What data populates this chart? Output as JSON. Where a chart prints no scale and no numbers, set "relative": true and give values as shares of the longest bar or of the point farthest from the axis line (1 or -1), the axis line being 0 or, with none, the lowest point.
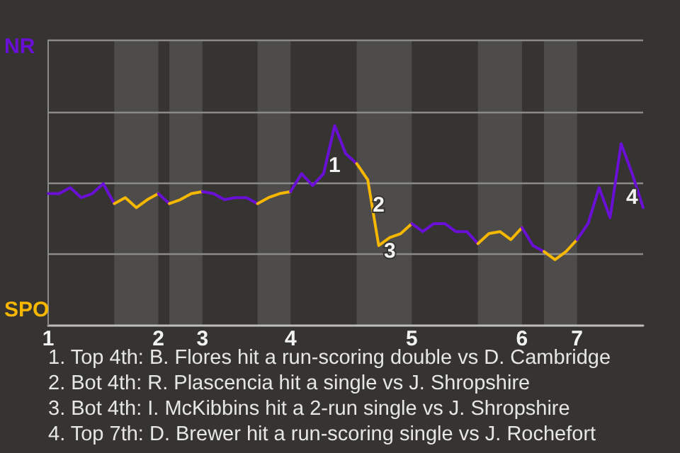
{
  "chart_data": {
    "type": "line",
    "relative": true,
    "categories": [
      "1",
      null,
      null,
      null,
      null,
      null,
      null,
      null,
      null,
      null,
      "2",
      null,
      null,
      null,
      "3",
      null,
      null,
      null,
      null,
      null,
      null,
      null,
      "4",
      null,
      null,
      null,
      null,
      null,
      null,
      null,
      null,
      null,
      null,
      "5",
      null,
      null,
      null,
      null,
      null,
      null,
      null,
      null,
      null,
      "6",
      null,
      null,
      null,
      null,
      "7",
      null,
      null,
      null,
      null,
      null,
      null
    ],
    "marker": "none",
    "line_style": "solid",
    "series": [
      {
        "color": "#6a0fd6",
        "values": [
          0.66,
          0.66,
          0.69,
          0.64,
          0.66,
          0.71,
          0.61,
          null,
          null,
          null,
          null,
          null,
          null,
          null,
          null,
          null,
          null,
          null,
          null,
          null,
          null,
          null,
          null,
          null,
          null,
          null,
          null,
          null,
          null,
          null,
          null,
          null,
          null,
          null,
          null,
          null,
          null,
          null,
          null,
          null,
          null,
          null,
          null,
          null,
          null,
          null,
          null,
          null,
          null,
          null,
          null,
          null,
          null,
          null,
          null
        ]
      },
      {
        "color": "#f5b700",
        "values": [
          null,
          null,
          null,
          null,
          null,
          null,
          0.61,
          0.64,
          0.59,
          0.63,
          0.66,
          null,
          null,
          null,
          null,
          null,
          null,
          null,
          null,
          null,
          null,
          null,
          null,
          null,
          null,
          null,
          null,
          null,
          null,
          null,
          null,
          null,
          null,
          null,
          null,
          null,
          null,
          null,
          null,
          null,
          null,
          null,
          null,
          null,
          null,
          null,
          null,
          null,
          null,
          null,
          null,
          null,
          null,
          null,
          null
        ]
      },
      {
        "color": "#6a0fd6",
        "values": [
          null,
          null,
          null,
          null,
          null,
          null,
          null,
          null,
          null,
          null,
          0.66,
          0.61,
          null,
          null,
          null,
          null,
          null,
          null,
          null,
          null,
          null,
          null,
          null,
          null,
          null,
          null,
          null,
          null,
          null,
          null,
          null,
          null,
          null,
          null,
          null,
          null,
          null,
          null,
          null,
          null,
          null,
          null,
          null,
          null,
          null,
          null,
          null,
          null,
          null,
          null,
          null,
          null,
          null,
          null,
          null
        ]
      },
      {
        "color": "#f5b700",
        "values": [
          null,
          null,
          null,
          null,
          null,
          null,
          null,
          null,
          null,
          null,
          null,
          0.61,
          0.63,
          0.66,
          0.67,
          null,
          null,
          null,
          null,
          null,
          null,
          null,
          null,
          null,
          null,
          null,
          null,
          null,
          null,
          null,
          null,
          null,
          null,
          null,
          null,
          null,
          null,
          null,
          null,
          null,
          null,
          null,
          null,
          null,
          null,
          null,
          null,
          null,
          null,
          null,
          null,
          null,
          null,
          null,
          null
        ]
      },
      {
        "color": "#6a0fd6",
        "values": [
          null,
          null,
          null,
          null,
          null,
          null,
          null,
          null,
          null,
          null,
          null,
          null,
          null,
          null,
          0.67,
          0.66,
          0.63,
          0.64,
          0.64,
          0.61,
          null,
          null,
          null,
          null,
          null,
          null,
          null,
          null,
          null,
          null,
          null,
          null,
          null,
          null,
          null,
          null,
          null,
          null,
          null,
          null,
          null,
          null,
          null,
          null,
          null,
          null,
          null,
          null,
          null,
          null,
          null,
          null,
          null,
          null,
          null
        ]
      },
      {
        "color": "#f5b700",
        "values": [
          null,
          null,
          null,
          null,
          null,
          null,
          null,
          null,
          null,
          null,
          null,
          null,
          null,
          null,
          null,
          null,
          null,
          null,
          null,
          0.61,
          0.64,
          0.66,
          0.67,
          null,
          null,
          null,
          null,
          null,
          null,
          null,
          null,
          null,
          null,
          null,
          null,
          null,
          null,
          null,
          null,
          null,
          null,
          null,
          null,
          null,
          null,
          null,
          null,
          null,
          null,
          null,
          null,
          null,
          null,
          null,
          null
        ]
      },
      {
        "color": "#6a0fd6",
        "values": [
          null,
          null,
          null,
          null,
          null,
          null,
          null,
          null,
          null,
          null,
          null,
          null,
          null,
          null,
          null,
          null,
          null,
          null,
          null,
          null,
          null,
          null,
          0.67,
          0.76,
          0.7,
          0.76,
          1,
          0.86,
          0.81,
          null,
          null,
          null,
          null,
          null,
          null,
          null,
          null,
          null,
          null,
          null,
          null,
          null,
          null,
          null,
          null,
          null,
          null,
          null,
          null,
          null,
          null,
          null,
          null,
          null,
          null
        ]
      },
      {
        "color": "#f5b700",
        "values": [
          null,
          null,
          null,
          null,
          null,
          null,
          null,
          null,
          null,
          null,
          null,
          null,
          null,
          null,
          null,
          null,
          null,
          null,
          null,
          null,
          null,
          null,
          null,
          null,
          null,
          null,
          null,
          null,
          0.81,
          0.73,
          0.4,
          0.44,
          0.46,
          0.51,
          null,
          null,
          null,
          null,
          null,
          null,
          null,
          null,
          null,
          null,
          null,
          null,
          null,
          null,
          null,
          null,
          null,
          null,
          null,
          null,
          null
        ]
      },
      {
        "color": "#6a0fd6",
        "values": [
          null,
          null,
          null,
          null,
          null,
          null,
          null,
          null,
          null,
          null,
          null,
          null,
          null,
          null,
          null,
          null,
          null,
          null,
          null,
          null,
          null,
          null,
          null,
          null,
          null,
          null,
          null,
          null,
          null,
          null,
          null,
          null,
          null,
          0.51,
          0.47,
          0.51,
          0.51,
          0.47,
          0.47,
          0.41,
          null,
          null,
          null,
          null,
          null,
          null,
          null,
          null,
          null,
          null,
          null,
          null,
          null,
          null,
          null
        ]
      },
      {
        "color": "#f5b700",
        "values": [
          null,
          null,
          null,
          null,
          null,
          null,
          null,
          null,
          null,
          null,
          null,
          null,
          null,
          null,
          null,
          null,
          null,
          null,
          null,
          null,
          null,
          null,
          null,
          null,
          null,
          null,
          null,
          null,
          null,
          null,
          null,
          null,
          null,
          null,
          null,
          null,
          null,
          null,
          null,
          0.41,
          0.46,
          0.47,
          0.43,
          0.49,
          null,
          null,
          null,
          null,
          null,
          null,
          null,
          null,
          null,
          null,
          null
        ]
      },
      {
        "color": "#6a0fd6",
        "values": [
          null,
          null,
          null,
          null,
          null,
          null,
          null,
          null,
          null,
          null,
          null,
          null,
          null,
          null,
          null,
          null,
          null,
          null,
          null,
          null,
          null,
          null,
          null,
          null,
          null,
          null,
          null,
          null,
          null,
          null,
          null,
          null,
          null,
          null,
          null,
          null,
          null,
          null,
          null,
          null,
          null,
          null,
          null,
          0.49,
          0.4,
          0.37,
          null,
          null,
          null,
          null,
          null,
          null,
          null,
          null,
          null
        ]
      },
      {
        "color": "#f5b700",
        "values": [
          null,
          null,
          null,
          null,
          null,
          null,
          null,
          null,
          null,
          null,
          null,
          null,
          null,
          null,
          null,
          null,
          null,
          null,
          null,
          null,
          null,
          null,
          null,
          null,
          null,
          null,
          null,
          null,
          null,
          null,
          null,
          null,
          null,
          null,
          null,
          null,
          null,
          null,
          null,
          null,
          null,
          null,
          null,
          null,
          null,
          0.37,
          0.33,
          0.37,
          0.43,
          null,
          null,
          null,
          null,
          null,
          null
        ]
      },
      {
        "color": "#6a0fd6",
        "values": [
          null,
          null,
          null,
          null,
          null,
          null,
          null,
          null,
          null,
          null,
          null,
          null,
          null,
          null,
          null,
          null,
          null,
          null,
          null,
          null,
          null,
          null,
          null,
          null,
          null,
          null,
          null,
          null,
          null,
          null,
          null,
          null,
          null,
          null,
          null,
          null,
          null,
          null,
          null,
          null,
          null,
          null,
          null,
          null,
          null,
          null,
          null,
          null,
          0.43,
          0.51,
          0.69,
          0.54,
          0.91,
          0.76,
          0.59
        ]
      }
    ],
    "ref_lines": [
      {
        "axis": "y",
        "value": 0.36,
        "color": "#8a8a8a"
      },
      {
        "axis": "y",
        "value": 0.71,
        "color": "#8a8a8a"
      },
      {
        "axis": "y",
        "value": 1.07,
        "color": "#8a8a8a"
      },
      {
        "axis": "y",
        "value": 1.43,
        "color": "#8a8a8a"
      }
    ],
    "annotations": [
      "NR",
      "SPO",
      "1",
      "2",
      "3",
      "4",
      "1. Top 4th: B. Flores hit a run-scoring double vs D. Cambridge",
      "2. Bot 4th: R. Plascencia hit a single vs J. Shropshire",
      "3. Bot 4th: I. McKibbins hit a 2-run single vs J. Shropshire",
      "4. Top 7th: D. Brewer hit a run-scoring single vs J. Rochefort"
    ]
  }
}
